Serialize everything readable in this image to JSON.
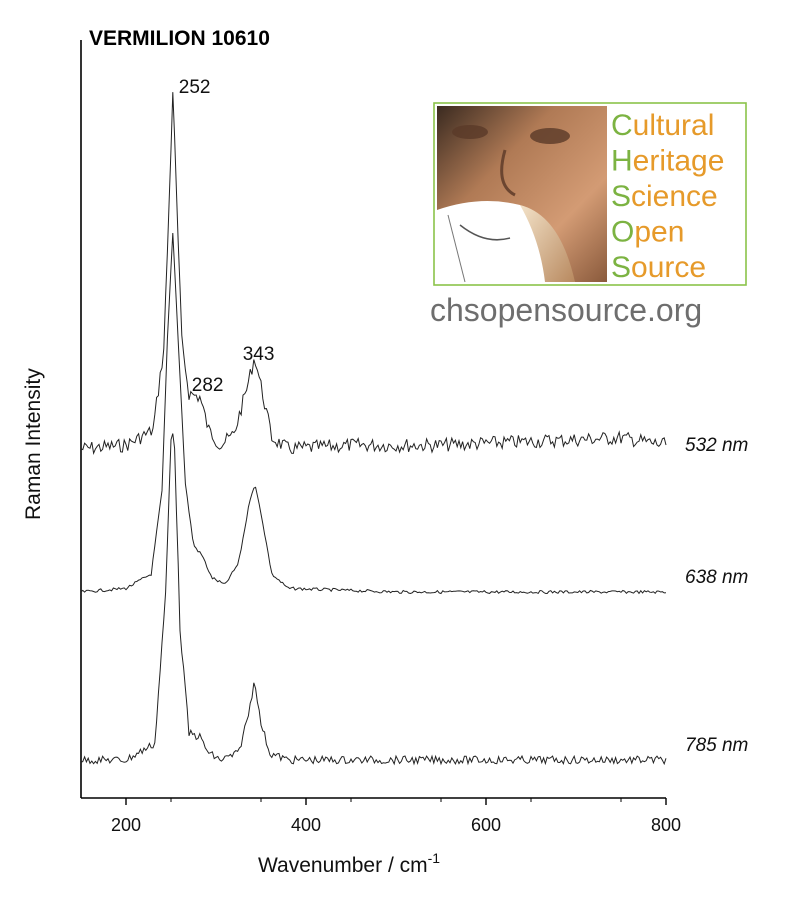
{
  "chart_data": {
    "type": "line",
    "title": "VERMILION 10610",
    "xlabel": "Wavenumber / cm",
    "xlabel_sup": "-1",
    "ylabel": "Raman Intensity",
    "xlim": [
      150,
      800
    ],
    "xticks": [
      "200",
      "400",
      "600",
      "800"
    ],
    "grid": false,
    "peak_labels": [
      {
        "text": "252",
        "x": 252
      },
      {
        "text": "282",
        "x": 282
      },
      {
        "text": "343",
        "x": 343
      }
    ],
    "series": [
      {
        "name": "532 nm",
        "x": [
          150,
          200,
          230,
          242,
          248,
          252,
          256,
          262,
          270,
          282,
          292,
          305,
          320,
          335,
          343,
          350,
          362,
          380,
          450,
          550,
          650,
          750,
          800
        ],
        "y": [
          0.03,
          0.04,
          0.08,
          0.3,
          0.7,
          1.0,
          0.72,
          0.32,
          0.18,
          0.17,
          0.08,
          0.04,
          0.07,
          0.2,
          0.28,
          0.2,
          0.06,
          0.03,
          0.04,
          0.04,
          0.05,
          0.06,
          0.04
        ]
      },
      {
        "name": "638 nm",
        "x": [
          150,
          200,
          228,
          240,
          246,
          252,
          258,
          266,
          275,
          285,
          295,
          310,
          325,
          338,
          343,
          350,
          362,
          380,
          500,
          650,
          800
        ],
        "y": [
          0.0,
          0.01,
          0.05,
          0.28,
          0.7,
          1.0,
          0.7,
          0.3,
          0.13,
          0.1,
          0.04,
          0.02,
          0.08,
          0.26,
          0.3,
          0.22,
          0.05,
          0.01,
          0.0,
          0.0,
          0.0
        ]
      },
      {
        "name": "785 nm",
        "x": [
          150,
          200,
          232,
          244,
          250,
          252,
          254,
          260,
          270,
          282,
          292,
          305,
          325,
          337,
          343,
          349,
          360,
          380,
          450,
          550,
          650,
          800
        ],
        "y": [
          0.0,
          0.0,
          0.05,
          0.5,
          0.97,
          1.0,
          0.95,
          0.4,
          0.08,
          0.07,
          0.02,
          0.0,
          0.02,
          0.15,
          0.25,
          0.12,
          0.02,
          0.0,
          0.0,
          0.0,
          0.0,
          0.0
        ]
      }
    ]
  },
  "logo": {
    "words": [
      {
        "initial": "C",
        "rest": "ultural"
      },
      {
        "initial": "H",
        "rest": "eritage"
      },
      {
        "initial": "S",
        "rest": "cience"
      },
      {
        "initial": "O",
        "rest": "pen"
      },
      {
        "initial": "S",
        "rest": "ource"
      }
    ],
    "url": "chsopensource.org",
    "colors": {
      "green": "#7cb342",
      "orange": "#e69a2a",
      "url_gray": "#6e6e6e",
      "border": "#8bc34a"
    }
  }
}
